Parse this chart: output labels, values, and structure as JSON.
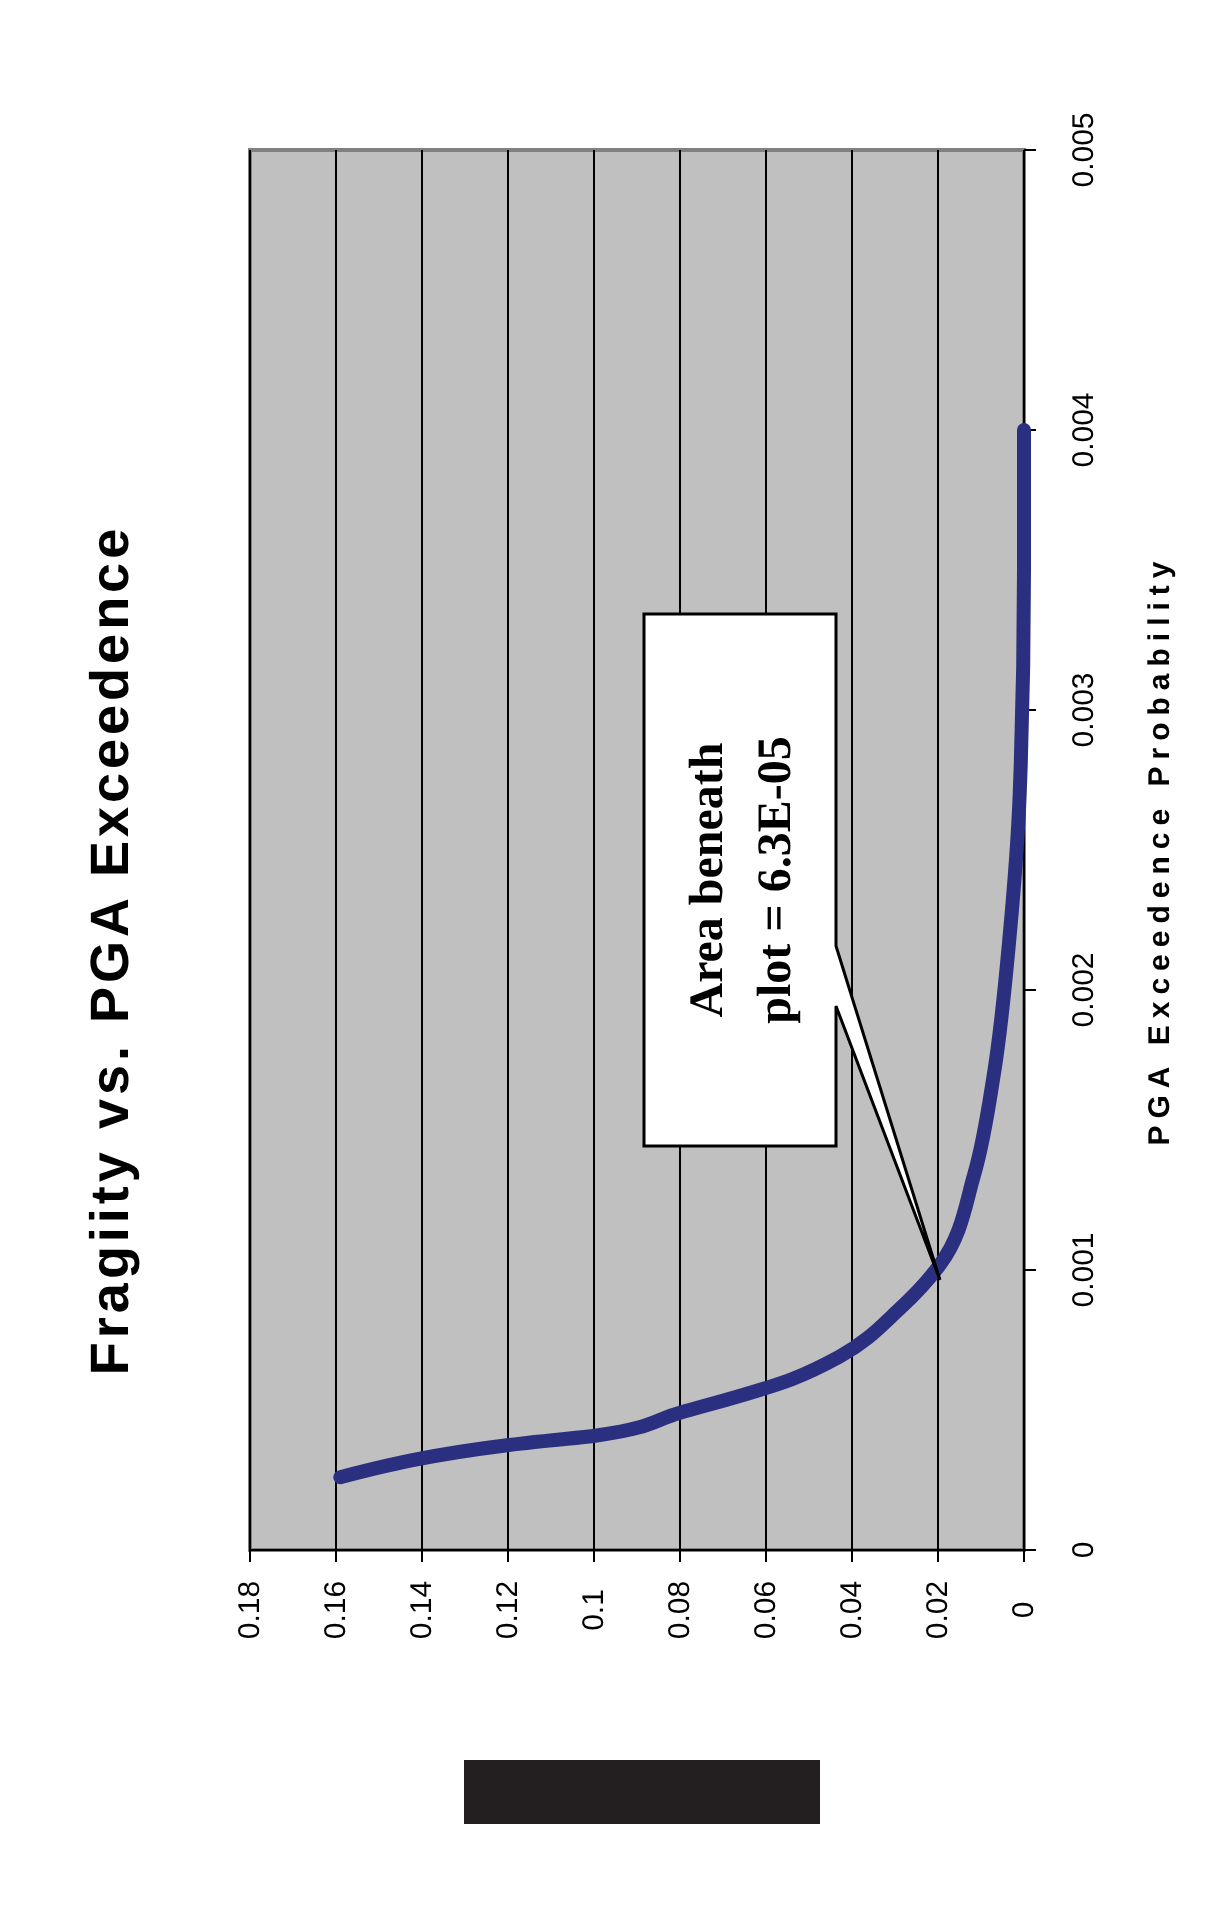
{
  "chart_data": {
    "type": "line",
    "title": "Fragiity vs. PGA Exceedence",
    "ylabel": "PGA Exceedence Probability",
    "x": [
      0.159,
      0.117,
      0.099,
      0.08,
      0.054,
      0.043,
      0.029,
      0.0195,
      0.0116,
      0.007,
      0.0033,
      0.001,
      0,
      0
    ],
    "series": [
      {
        "color": "#2b2f7f",
        "values": [
          0.00026,
          0.00038,
          0.00041,
          0.00049,
          0.00061,
          0.00069,
          0.00086,
          0.00102,
          0.00134,
          0.0017,
          0.0022,
          0.0027,
          0.0035,
          0.004
        ]
      }
    ],
    "xlim": [
      0.18,
      0
    ],
    "xticks": [
      0.18,
      0.16,
      0.14,
      0.12,
      0.1,
      0.08,
      0.06,
      0.04,
      0.02,
      0
    ],
    "ylim": [
      0,
      0.005
    ],
    "yticks": [
      0,
      0.001,
      0.002,
      0.003,
      0.004,
      0.005
    ],
    "grid": "x",
    "marker": "none",
    "line_style": "solid",
    "annotations": [
      "Area beneath\nplot = 6.3E-05"
    ]
  }
}
